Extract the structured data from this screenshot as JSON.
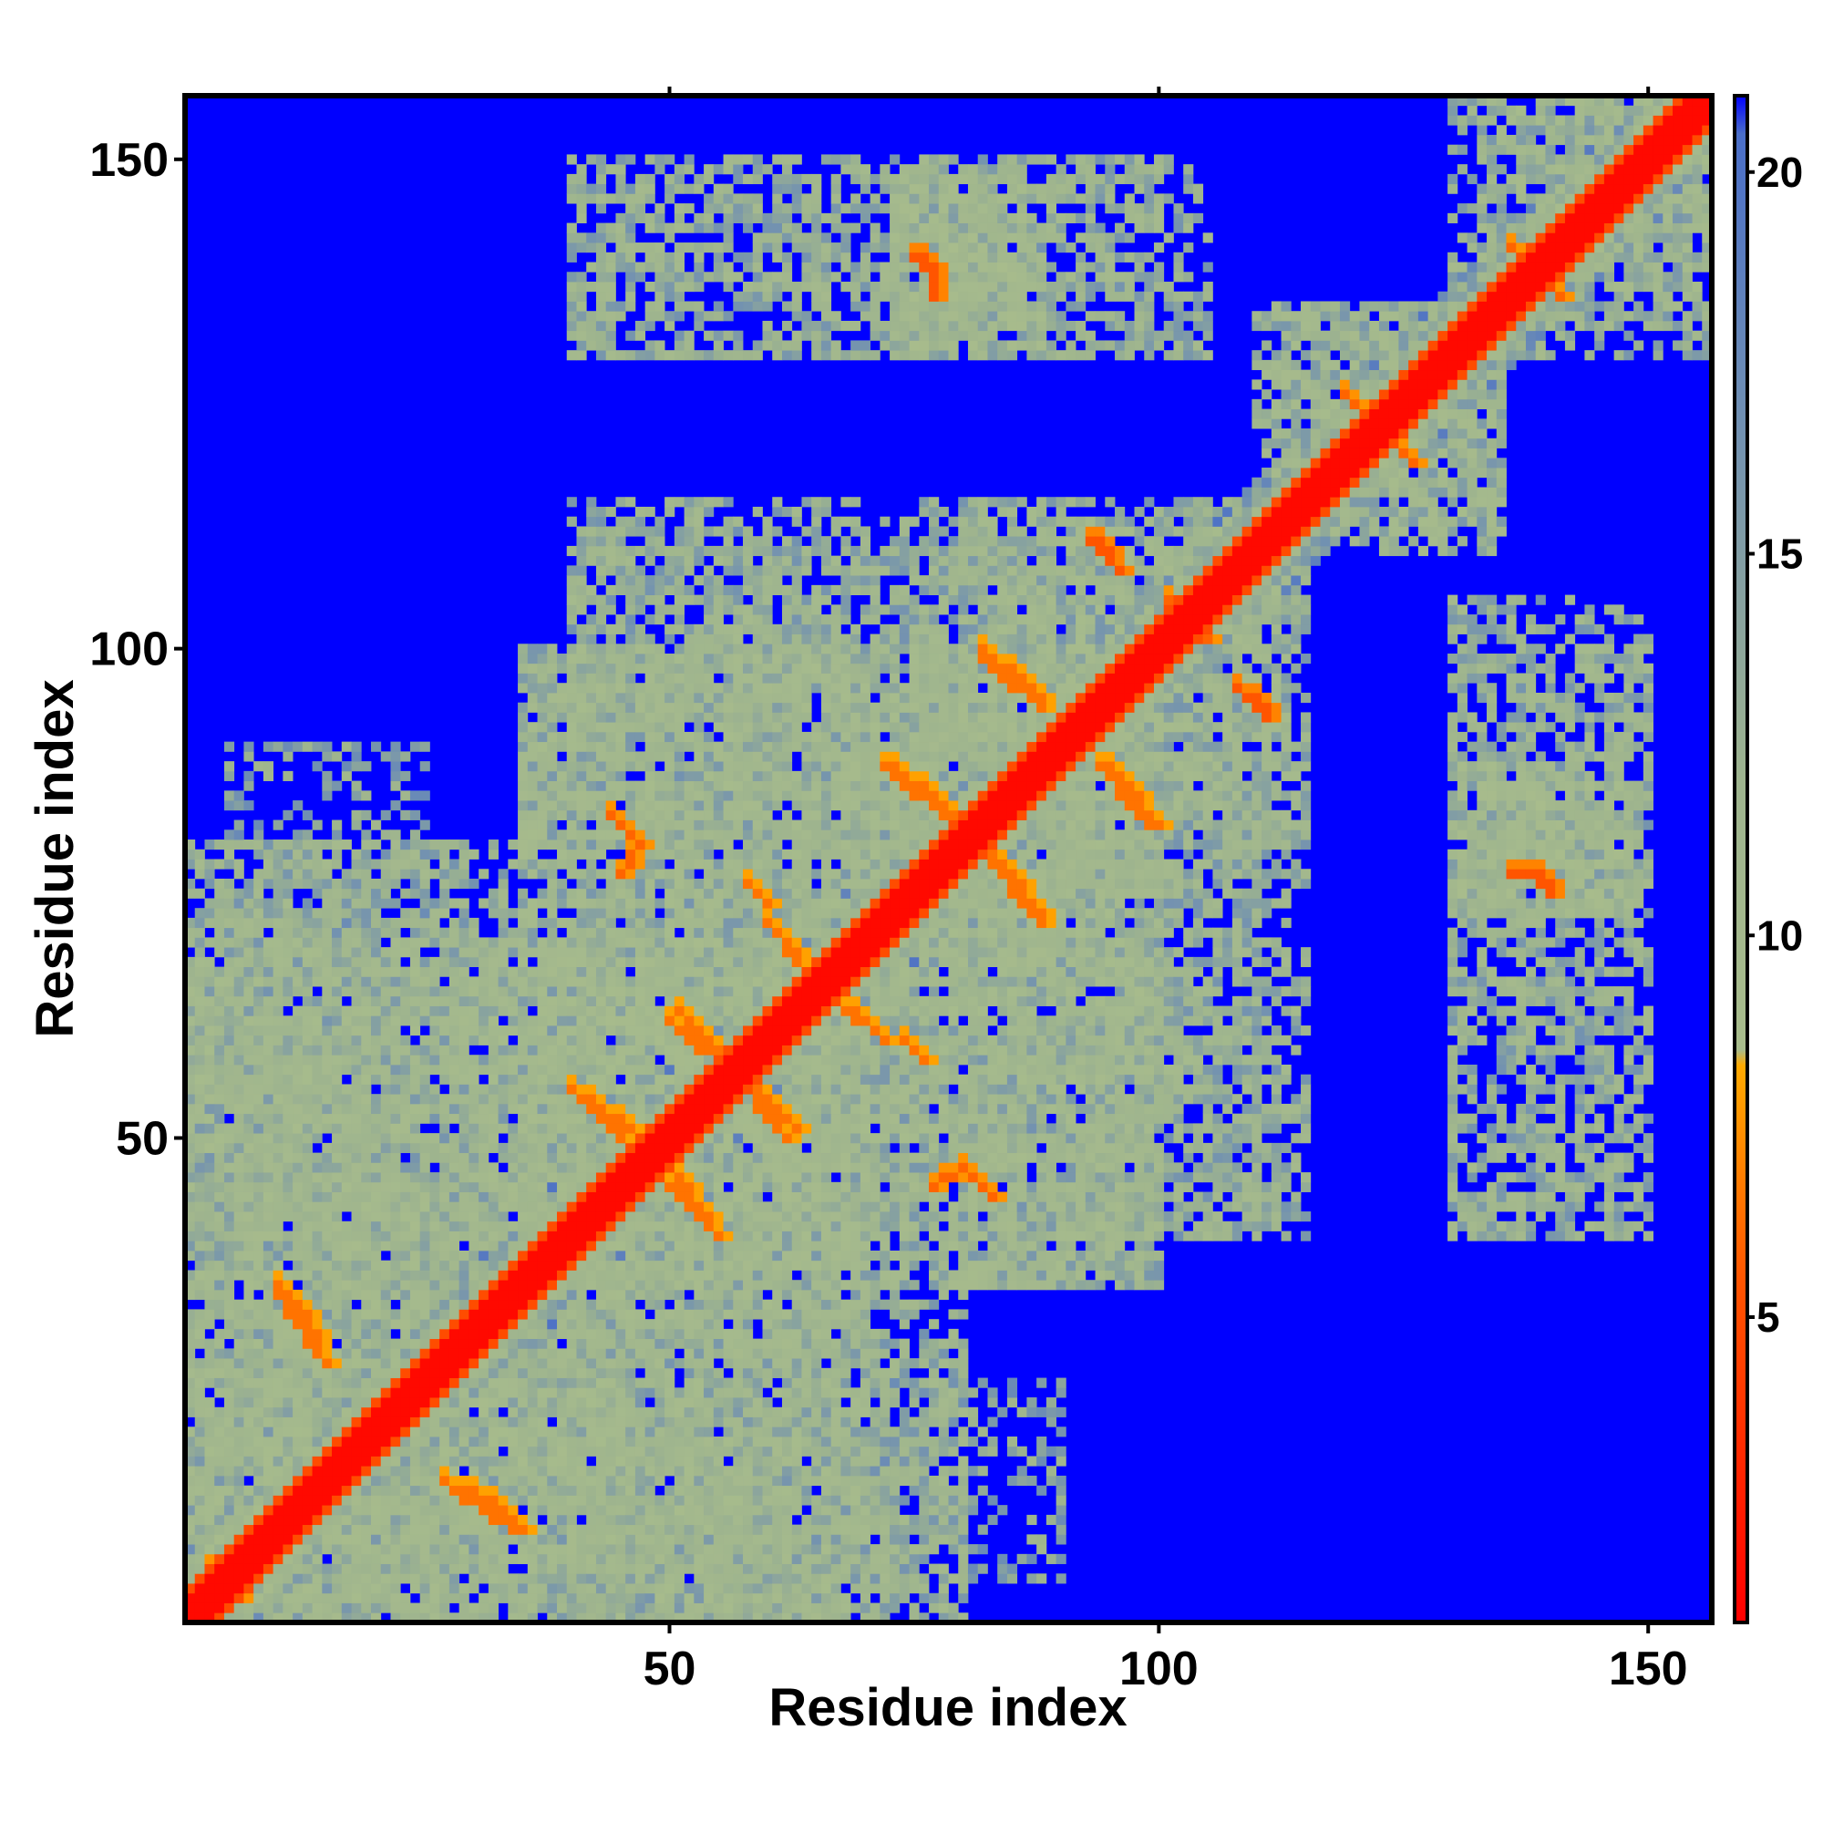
{
  "chart_data": {
    "type": "heatmap",
    "title": "",
    "xlabel": "Residue index",
    "ylabel": "Residue index",
    "n_residues": 156,
    "x_range": [
      1,
      156
    ],
    "y_range": [
      1,
      156
    ],
    "x_ticks": [
      50,
      100,
      150
    ],
    "y_ticks": [
      50,
      100,
      150
    ],
    "value_unit": "distance (colour scale)",
    "colorbar": {
      "range": [
        1,
        21
      ],
      "ticks": [
        5,
        10,
        15,
        20
      ],
      "placement": "right",
      "stops": [
        {
          "value": 1,
          "color": "#ff0000"
        },
        {
          "value": 5.5,
          "color": "#ff5500"
        },
        {
          "value": 8.3,
          "color": "#ffaa00"
        },
        {
          "value": 8.5,
          "color": "#a8bc8c"
        },
        {
          "value": 12,
          "color": "#9eb48e"
        },
        {
          "value": 17,
          "color": "#6e8eb4"
        },
        {
          "value": 20.5,
          "color": "#4a6ec8"
        },
        {
          "value": 21,
          "color": "#0000ff"
        }
      ]
    },
    "background_color": "#0000ff",
    "diagonal_band": {
      "core_width_residues": 2,
      "value_core": 1.5,
      "value_edge": 5
    },
    "contact_lines": [
      {
        "from": [
          82,
          100
        ],
        "to": [
          88,
          95
        ],
        "value": 6.5
      },
      {
        "from": [
          72,
          88
        ],
        "to": [
          78,
          83
        ],
        "value": 6.5
      },
      {
        "from": [
          83,
          79
        ],
        "to": [
          88,
          73
        ],
        "value": 6.5
      },
      {
        "from": [
          94,
          88
        ],
        "to": [
          99,
          82
        ],
        "value": 6.5
      },
      {
        "from": [
          51,
          63
        ],
        "to": [
          56,
          58
        ],
        "value": 6.5
      },
      {
        "from": [
          58,
          55
        ],
        "to": [
          62,
          50
        ],
        "value": 6.5
      },
      {
        "from": [
          40,
          55
        ],
        "to": [
          47,
          50
        ],
        "value": 6.5
      },
      {
        "from": [
          50,
          45
        ],
        "to": [
          55,
          40
        ],
        "value": 6.5
      },
      {
        "from": [
          60,
          72
        ],
        "to": [
          65,
          66
        ],
        "value": 6.5
      },
      {
        "from": [
          44,
          83
        ],
        "to": [
          46,
          81
        ],
        "value": 6.0
      },
      {
        "from": [
          10,
          35
        ],
        "to": [
          14,
          30
        ],
        "value": 6.5
      },
      {
        "from": [
          27,
          15
        ],
        "to": [
          34,
          10
        ],
        "value": 6.5
      },
      {
        "from": [
          3,
          6
        ],
        "to": [
          6,
          3
        ],
        "value": 6.0
      },
      {
        "from": [
          93,
          111
        ],
        "to": [
          95,
          110
        ],
        "value": 5.5
      },
      {
        "from": [
          108,
          96
        ],
        "to": [
          110,
          94
        ],
        "value": 5.5
      },
      {
        "from": [
          102,
          102
        ],
        "to": [
          105,
          101
        ],
        "value": 6.0
      },
      {
        "from": [
          77,
          45
        ],
        "to": [
          80,
          47
        ],
        "value": 6.0
      },
      {
        "from": [
          75,
          140
        ],
        "to": [
          77,
          139
        ],
        "value": 5.5
      },
      {
        "from": [
          136,
          141
        ],
        "to": [
          140,
          138
        ],
        "value": 6.0
      },
      {
        "from": [
          121,
          124
        ],
        "to": [
          126,
          119
        ],
        "value": 6.0
      },
      {
        "from": [
          136,
          77
        ],
        "to": [
          138,
          77
        ],
        "value": 5.5
      },
      {
        "from": [
          74,
          60
        ],
        "to": [
          76,
          58
        ],
        "value": 6.5
      }
    ],
    "contact_regions": [
      {
        "x": [
          1,
          70
        ],
        "y": [
          1,
          70
        ],
        "value": 12.5,
        "density": 0.6
      },
      {
        "x": [
          1,
          45
        ],
        "y": [
          5,
          28
        ],
        "value": 12.5,
        "density": 0.6
      },
      {
        "x": [
          1,
          35
        ],
        "y": [
          40,
          80
        ],
        "value": 13,
        "density": 0.5
      },
      {
        "x": [
          35,
          100
        ],
        "y": [
          35,
          100
        ],
        "value": 12.5,
        "density": 0.6
      },
      {
        "x": [
          40,
          85
        ],
        "y": [
          80,
          110
        ],
        "value": 13,
        "density": 0.5
      },
      {
        "x": [
          70,
          115
        ],
        "y": [
          40,
          95
        ],
        "value": 13,
        "density": 0.5
      },
      {
        "x": [
          80,
          112
        ],
        "y": [
          88,
          115
        ],
        "value": 12.5,
        "density": 0.6
      },
      {
        "x": [
          35,
          80
        ],
        "y": [
          1,
          30
        ],
        "value": 13,
        "density": 0.5
      },
      {
        "x": [
          70,
          90
        ],
        "y": [
          5,
          25
        ],
        "value": 14,
        "density": 0.4
      },
      {
        "x": [
          40,
          105
        ],
        "y": [
          130,
          150
        ],
        "value": 13,
        "density": 0.45
      },
      {
        "x": [
          73,
          88
        ],
        "y": [
          130,
          148
        ],
        "value": 12,
        "density": 0.7
      },
      {
        "x": [
          110,
          135
        ],
        "y": [
          112,
          135
        ],
        "value": 12.5,
        "density": 0.6
      },
      {
        "x": [
          133,
          156
        ],
        "y": [
          130,
          156
        ],
        "value": 12.5,
        "density": 0.6
      },
      {
        "x": [
          130,
          150
        ],
        "y": [
          40,
          100
        ],
        "value": 13,
        "density": 0.45
      },
      {
        "x": [
          133,
          148
        ],
        "y": [
          73,
          85
        ],
        "value": 12,
        "density": 0.7
      },
      {
        "x": [
          93,
          112
        ],
        "y": [
          40,
          60
        ],
        "value": 13.5,
        "density": 0.4
      }
    ]
  }
}
